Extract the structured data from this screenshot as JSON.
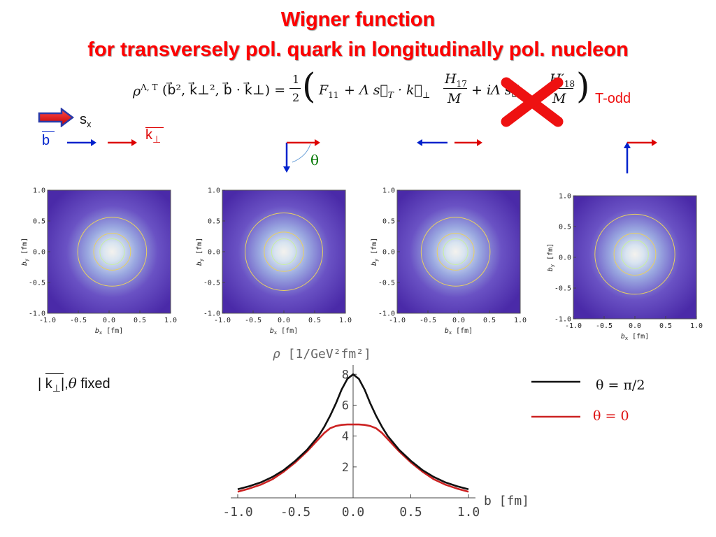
{
  "title": {
    "line1": "Wigner function",
    "line2": "for transversely pol. quark in longitudinally pol. nucleon"
  },
  "formula": {
    "lhs": "ρ",
    "lhs_sup": "Λ, T",
    "lhs_args": "(b⃗², k⃗⊥², b⃗ · k⃗⊥) =",
    "half_num": "1",
    "half_den": "2",
    "term1": "F",
    "term1_sub": "11",
    "term2_pre": "+ Λ s⃗",
    "term2_sub": "T",
    "term2_mid": "· k⃗",
    "term2_sub2": "⊥",
    "frac2_num": "H",
    "frac2_num_sub": "17",
    "frac2_den": "M",
    "term3_pre": "+ iΛ s⃗",
    "term3_sub": "T",
    "frac3_num": "H′",
    "frac3_num_sub": "18",
    "frac3_den": "M",
    "t_odd_label": "T-odd"
  },
  "legend_icons": {
    "sx_label": "s",
    "sx_sub": "x",
    "b_label": "b",
    "k_label": "k",
    "k_sub": "⊥",
    "theta_label": "θ"
  },
  "colors": {
    "title": "#ff0000",
    "b_arrow": "#0022cc",
    "k_arrow": "#dd0000",
    "cross": "#ee1111",
    "curve_black": "#111111",
    "curve_red": "#cc2222",
    "plot_bg": "#4a2aa8",
    "contour": "#e8d060"
  },
  "chart_data": [
    {
      "type": "heatmap",
      "xlabel": "b",
      "xlabel_sub": "x",
      "xlabel_unit": "[fm]",
      "ylabel": "b",
      "ylabel_sub": "y",
      "ylabel_unit": "[fm]",
      "xlim": [
        -1.0,
        1.0
      ],
      "ylim": [
        -1.0,
        1.0
      ],
      "x_ticks": [
        "-1.0",
        "-0.5",
        "0.0",
        "0.5",
        "1.0"
      ],
      "y_ticks": [
        "1.0",
        "0.5",
        "0.0",
        "-0.5",
        "-1.0"
      ],
      "center": [
        0.05,
        0.0
      ],
      "contour_radii": [
        0.56,
        0.3,
        0.2
      ]
    },
    {
      "type": "heatmap",
      "xlabel": "b",
      "xlabel_sub": "x",
      "xlabel_unit": "[fm]",
      "ylabel": "b",
      "ylabel_sub": "y",
      "ylabel_unit": "[fm]",
      "xlim": [
        -1.0,
        1.0
      ],
      "ylim": [
        -1.0,
        1.0
      ],
      "x_ticks": [
        "-1.0",
        "-0.5",
        "0.0",
        "0.5",
        "1.0"
      ],
      "y_ticks": [
        "1.0",
        "0.5",
        "0.0",
        "-0.5",
        "-1.0"
      ],
      "center": [
        0.0,
        0.0
      ],
      "contour_radii": [
        0.63,
        0.32,
        0.2
      ]
    },
    {
      "type": "heatmap",
      "xlabel": "b",
      "xlabel_sub": "x",
      "xlabel_unit": "[fm]",
      "ylabel": "b",
      "ylabel_sub": "y",
      "ylabel_unit": "[fm]",
      "xlim": [
        -1.0,
        1.0
      ],
      "ylim": [
        -1.0,
        1.0
      ],
      "x_ticks": [
        "-1.0",
        "-0.5",
        "0.0",
        "0.5",
        "1.0"
      ],
      "y_ticks": [
        "1.0",
        "0.5",
        "0.0",
        "-0.5",
        "-1.0"
      ],
      "center": [
        -0.05,
        0.0
      ],
      "contour_radii": [
        0.56,
        0.3,
        0.2
      ]
    },
    {
      "type": "heatmap",
      "xlabel": "b",
      "xlabel_sub": "x",
      "xlabel_unit": "[fm]",
      "ylabel": "b",
      "ylabel_sub": "y",
      "ylabel_unit": "[fm]",
      "xlim": [
        -1.0,
        1.0
      ],
      "ylim": [
        -1.0,
        1.0
      ],
      "x_ticks": [
        "-1.0",
        "-0.5",
        "0.0",
        "0.5",
        "1.0"
      ],
      "y_ticks": [
        "1.0",
        "0.5",
        "0.0",
        "-0.5",
        "-1.0"
      ],
      "center": [
        0.0,
        0.05
      ],
      "contour_radii": [
        0.65,
        0.34,
        0.22
      ]
    },
    {
      "type": "line",
      "ylabel": "ρ",
      "ylabel_unit": "[1/GeV²fm²]",
      "xlabel": "b",
      "xlabel_unit": "[fm]",
      "xlim": [
        -1.0,
        1.0
      ],
      "ylim": [
        0,
        8.6
      ],
      "x_ticks": [
        "-1.0",
        "-0.5",
        "0.0",
        "0.5",
        "1.0"
      ],
      "y_ticks": [
        "2",
        "4",
        "6",
        "8"
      ],
      "series": [
        {
          "name": "θ = π/2",
          "color": "#111111",
          "x": [
            -1.0,
            -0.9,
            -0.8,
            -0.7,
            -0.6,
            -0.5,
            -0.4,
            -0.3,
            -0.25,
            -0.2,
            -0.15,
            -0.1,
            -0.05,
            0.0,
            0.05,
            0.1,
            0.15,
            0.2,
            0.25,
            0.3,
            0.4,
            0.5,
            0.6,
            0.7,
            0.8,
            0.9,
            1.0
          ],
          "y": [
            0.55,
            0.75,
            1.0,
            1.35,
            1.8,
            2.4,
            3.1,
            4.0,
            4.6,
            5.3,
            6.1,
            7.0,
            7.7,
            8.0,
            7.7,
            7.0,
            6.1,
            5.3,
            4.6,
            4.0,
            3.1,
            2.4,
            1.8,
            1.35,
            1.0,
            0.75,
            0.55
          ]
        },
        {
          "name": "θ = 0",
          "color": "#cc2222",
          "x": [
            -1.0,
            -0.9,
            -0.8,
            -0.7,
            -0.6,
            -0.5,
            -0.4,
            -0.3,
            -0.25,
            -0.2,
            -0.15,
            -0.1,
            -0.05,
            0.0,
            0.05,
            0.1,
            0.15,
            0.2,
            0.25,
            0.3,
            0.4,
            0.5,
            0.6,
            0.7,
            0.8,
            0.9,
            1.0
          ],
          "y": [
            0.4,
            0.6,
            0.85,
            1.2,
            1.7,
            2.3,
            3.0,
            3.8,
            4.2,
            4.5,
            4.65,
            4.72,
            4.75,
            4.75,
            4.75,
            4.72,
            4.65,
            4.5,
            4.2,
            3.8,
            3.0,
            2.3,
            1.7,
            1.2,
            0.85,
            0.6,
            0.4
          ]
        }
      ]
    }
  ],
  "line_legend": {
    "black_label": "θ = π/2",
    "red_label": "θ = 0"
  },
  "note": {
    "prefix": "| ",
    "k": "k",
    "k_sub": "⊥",
    "suffix_bar": "|,",
    "theta": "θ",
    "fixed": " fixed"
  }
}
